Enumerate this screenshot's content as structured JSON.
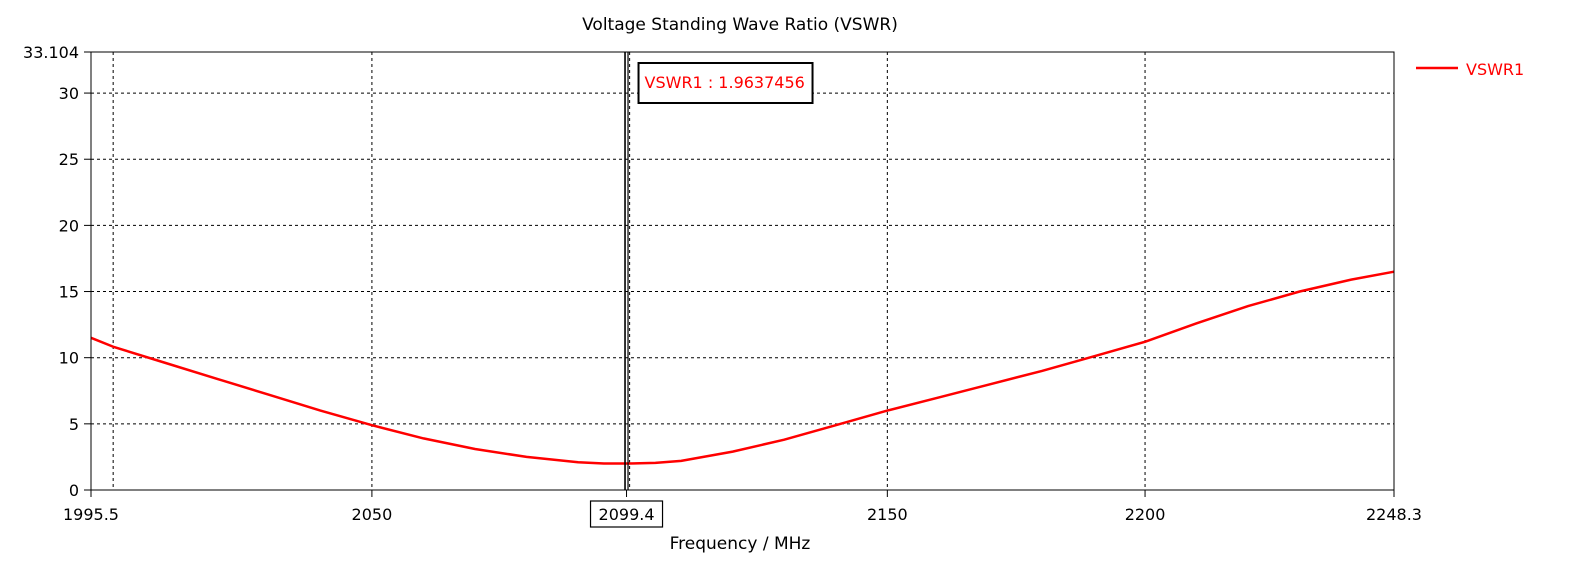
{
  "colors": {
    "series": "#ff0000",
    "axis": "#000000",
    "grid": "#000000",
    "background": "#ffffff"
  },
  "chart_data": {
    "type": "line",
    "title": "Voltage Standing Wave Ratio (VSWR)",
    "xlabel": "Frequency / MHz",
    "ylabel": "",
    "xlim": [
      1995.5,
      2248.3
    ],
    "ylim": [
      0,
      33.104
    ],
    "x_tick_labels": [
      "1995.5",
      "2050",
      "2099.4",
      "2150",
      "2200",
      "2248.3"
    ],
    "x_ticks": [
      1995.5,
      2050,
      2099.4,
      2150,
      2200,
      2248.3
    ],
    "x_grid": [
      1999.8,
      2050,
      2100,
      2150,
      2200
    ],
    "y_tick_labels": [
      "0",
      "5",
      "10",
      "15",
      "20",
      "25",
      "30",
      "33.104"
    ],
    "y_ticks": [
      0,
      5,
      10,
      15,
      20,
      25,
      30,
      33.104
    ],
    "grid": true,
    "legend_position": "top-right",
    "series": [
      {
        "name": "VSWR1",
        "x": [
          1995.5,
          2000,
          2010,
          2020,
          2030,
          2040,
          2050,
          2060,
          2070,
          2080,
          2090,
          2095,
          2100,
          2105,
          2110,
          2120,
          2130,
          2140,
          2150,
          2160,
          2170,
          2180,
          2190,
          2200,
          2210,
          2220,
          2230,
          2240,
          2248.3
        ],
        "y": [
          11.5,
          10.8,
          9.6,
          8.4,
          7.2,
          6.0,
          4.9,
          3.9,
          3.1,
          2.5,
          2.1,
          2.0,
          2.0,
          2.05,
          2.2,
          2.9,
          3.8,
          4.9,
          6.0,
          7.0,
          8.0,
          9.0,
          10.1,
          11.2,
          12.6,
          13.9,
          15.0,
          15.9,
          16.5
        ]
      }
    ],
    "marker": {
      "x": 2099.4,
      "x_label": "2099.4",
      "label": "VSWR1 : 1.9637456"
    }
  }
}
